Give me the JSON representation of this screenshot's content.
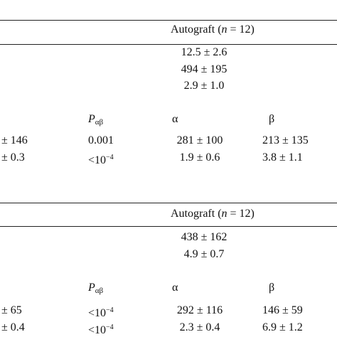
{
  "sections": [
    {
      "header": {
        "label": "Autograft (",
        "n": "n",
        "rest": " = 12)"
      },
      "values": [
        "12.5 ± 2.6",
        "494 ± 195",
        "2.9 ± 1.0"
      ],
      "subheader": {
        "p": "P",
        "p_sub": "αβ",
        "alpha": "α",
        "beta": "β"
      },
      "rows": [
        {
          "first": "± 146",
          "p": {
            "text": "0.001"
          },
          "alpha": "281 ± 100",
          "beta": "213 ± 135"
        },
        {
          "first": "± 0.3",
          "p": {
            "base": "<10",
            "exp": "−4"
          },
          "alpha": "1.9 ± 0.6",
          "beta": "3.8 ± 1.1"
        }
      ]
    },
    {
      "header": {
        "label": "Autograft (",
        "n": "n",
        "rest": " = 12)"
      },
      "values": [
        "438 ± 162",
        "4.9 ± 0.7"
      ],
      "subheader": {
        "p": "P",
        "p_sub": "αβ",
        "alpha": "α",
        "beta": "β"
      },
      "rows": [
        {
          "first": "± 65",
          "p": {
            "base": "<10",
            "exp": "−4"
          },
          "alpha": "292 ± 116",
          "beta": "146 ± 59"
        },
        {
          "first": "± 0.4",
          "p": {
            "base": "<10",
            "exp": "−4"
          },
          "alpha": "2.3 ± 0.4",
          "beta": "6.9 ± 1.2"
        }
      ]
    }
  ]
}
